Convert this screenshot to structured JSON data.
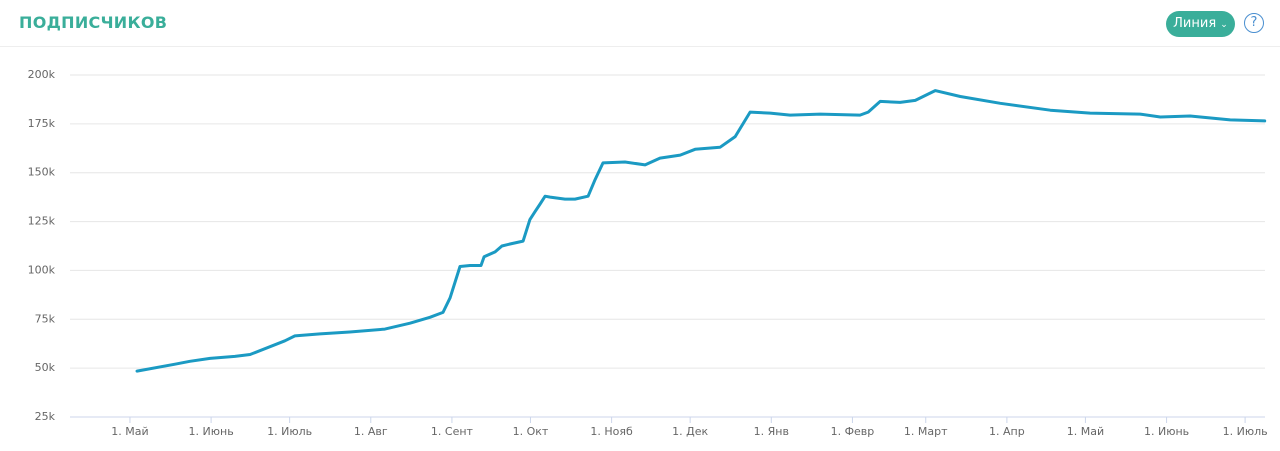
{
  "header": {
    "title": "ПОДПИСЧИКОВ",
    "button": "Линия",
    "help": "?"
  },
  "chart_data": {
    "type": "line",
    "x": [
      2.7,
      17.2,
      22.9,
      30.6,
      40.1,
      45.9,
      59.2,
      63,
      72.6,
      84,
      97.4,
      107,
      114.6,
      119.6,
      122.3,
      126.1,
      129.9,
      134.1,
      135.3,
      139.5,
      142.1,
      145.2,
      150.2,
      152.8,
      154.7,
      156.7,
      158.6,
      160.5,
      166.2,
      170,
      175,
      177.7,
      180.7,
      189.1,
      196.8,
      202.5,
      210.2,
      215.9,
      225.4,
      231.2,
      236.9,
      244.6,
      252.2,
      263.7,
      278.9,
      282,
      286.6,
      294.2,
      300,
      307.6,
      317.2,
      332.5,
      351.6,
      366.8,
      385.9,
      393.6,
      405,
      420.3,
      433.5
    ],
    "series": [
      {
        "color": "#1b9ac3",
        "values": [
          48500,
          52000,
          53500,
          55000,
          56000,
          57000,
          64000,
          66500,
          67500,
          68500,
          70000,
          73000,
          76000,
          78500,
          86000,
          102000,
          102500,
          102500,
          107000,
          109500,
          112500,
          113500,
          115000,
          126000,
          130000,
          134000,
          138000,
          137500,
          136500,
          136500,
          138000,
          146500,
          155000,
          155500,
          154000,
          157500,
          159000,
          162000,
          163000,
          168500,
          181000,
          180500,
          179500,
          180000,
          179500,
          181000,
          186500,
          186000,
          187000,
          192000,
          189000,
          185500,
          182000,
          180500,
          180000,
          178500,
          179000,
          177000,
          176500
        ]
      }
    ],
    "xlim": [
      -22.9,
      433.6
    ],
    "xticks": [
      {
        "value": 0,
        "label": "1. Май"
      },
      {
        "value": 31,
        "label": "1. Июнь"
      },
      {
        "value": 61,
        "label": "1. Июль"
      },
      {
        "value": 92,
        "label": "1. Авг"
      },
      {
        "value": 123,
        "label": "1. Сент"
      },
      {
        "value": 153,
        "label": "1. Окт"
      },
      {
        "value": 184,
        "label": "1. Нояб"
      },
      {
        "value": 214,
        "label": "1. Дек"
      },
      {
        "value": 245,
        "label": "1. Янв"
      },
      {
        "value": 276,
        "label": "1. Февр"
      },
      {
        "value": 304,
        "label": "1. Март"
      },
      {
        "value": 335,
        "label": "1. Апр"
      },
      {
        "value": 365,
        "label": "1. Май"
      },
      {
        "value": 396,
        "label": "1. Июнь"
      },
      {
        "value": 426,
        "label": "1. Июль"
      }
    ],
    "ylim": [
      25000,
      200000
    ],
    "yticks": [
      {
        "value": 25000,
        "label": "25k"
      },
      {
        "value": 50000,
        "label": "50k"
      },
      {
        "value": 75000,
        "label": "75k"
      },
      {
        "value": 100000,
        "label": "100k"
      },
      {
        "value": 125000,
        "label": "125k"
      },
      {
        "value": 150000,
        "label": "150k"
      },
      {
        "value": 175000,
        "label": "175k"
      },
      {
        "value": 200000,
        "label": "200k"
      }
    ],
    "grid": true
  }
}
